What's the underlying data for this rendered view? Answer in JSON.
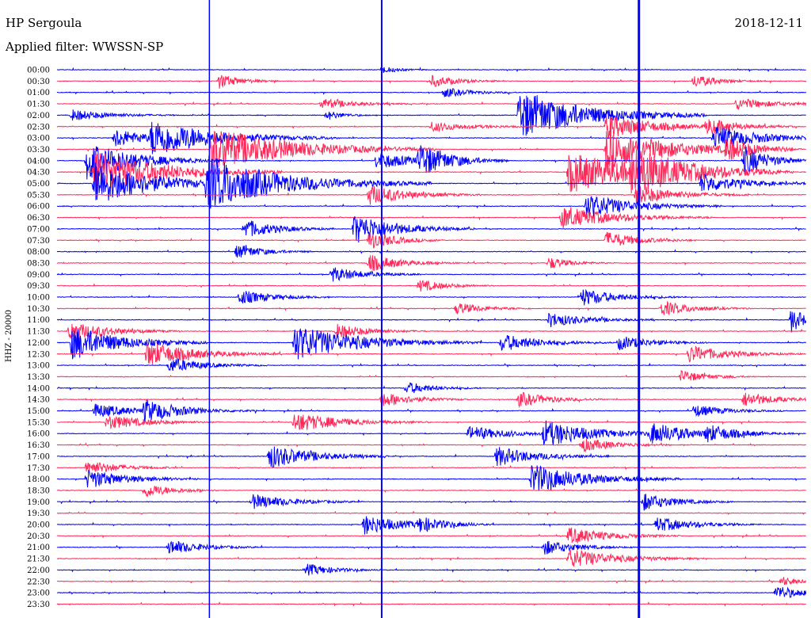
{
  "header": {
    "station": "HP Sergoula",
    "date": "2018-12-11",
    "filter": "Applied filter: WWSSN-SP"
  },
  "chart_data": {
    "type": "line",
    "title": "HP Sergoula",
    "subtitle": "Applied filter: WWSSN-SP",
    "channel_label": "HHZ - 20000",
    "date": "2018-12-11",
    "ylabel": "HHZ - 20000",
    "xlabel": "",
    "rows": [
      "00:00",
      "00:30",
      "01:00",
      "01:30",
      "02:00",
      "02:30",
      "03:00",
      "03:30",
      "04:00",
      "04:30",
      "05:00",
      "05:30",
      "06:00",
      "06:30",
      "07:00",
      "07:30",
      "08:00",
      "08:30",
      "09:00",
      "09:30",
      "10:00",
      "10:30",
      "11:00",
      "11:30",
      "12:00",
      "12:30",
      "13:00",
      "13:30",
      "14:00",
      "14:30",
      "15:00",
      "15:30",
      "16:00",
      "16:30",
      "17:00",
      "17:30",
      "18:00",
      "18:30",
      "19:00",
      "19:30",
      "20:00",
      "20:30",
      "21:00",
      "21:30",
      "22:00",
      "22:30",
      "23:00",
      "23:30"
    ],
    "colors": {
      "even": "#0000ff",
      "odd": "#ff2a5a"
    },
    "minutes_per_row": 30,
    "noise_level": 0.12,
    "events": [
      {
        "row": 0,
        "min": 13.0,
        "amp": 1.5,
        "dur": 0.6
      },
      {
        "row": 1,
        "min": 6.5,
        "amp": 3.0,
        "dur": 0.8
      },
      {
        "row": 1,
        "min": 15.0,
        "amp": 2.4,
        "dur": 1.0
      },
      {
        "row": 1,
        "min": 25.5,
        "amp": 2.6,
        "dur": 0.9
      },
      {
        "row": 2,
        "min": 15.5,
        "amp": 2.0,
        "dur": 1.0
      },
      {
        "row": 3,
        "min": 10.6,
        "amp": 2.2,
        "dur": 1.2
      },
      {
        "row": 3,
        "min": 27.2,
        "amp": 2.4,
        "dur": 1.4
      },
      {
        "row": 4,
        "min": 0.6,
        "amp": 2.3,
        "dur": 1.4
      },
      {
        "row": 4,
        "min": 10.8,
        "amp": 2.0,
        "dur": 0.6
      },
      {
        "row": 4,
        "min": 18.5,
        "amp": 10.0,
        "dur": 2.5
      },
      {
        "row": 5,
        "min": 15.0,
        "amp": 2.0,
        "dur": 1.5
      },
      {
        "row": 5,
        "min": 22.0,
        "amp": 5.0,
        "dur": 1.8
      },
      {
        "row": 5,
        "min": 26.0,
        "amp": 3.0,
        "dur": 1.2
      },
      {
        "row": 6,
        "min": 2.3,
        "amp": 4.0,
        "dur": 1.2
      },
      {
        "row": 6,
        "min": 3.8,
        "amp": 7.0,
        "dur": 2.5
      },
      {
        "row": 6,
        "min": 26.3,
        "amp": 5.0,
        "dur": 1.8
      },
      {
        "row": 7,
        "min": 6.2,
        "amp": 9.0,
        "dur": 3.0
      },
      {
        "row": 7,
        "min": 22.0,
        "amp": 8.0,
        "dur": 2.5
      },
      {
        "row": 7,
        "min": 26.8,
        "amp": 4.0,
        "dur": 1.0
      },
      {
        "row": 8,
        "min": 1.2,
        "amp": 8.0,
        "dur": 1.8
      },
      {
        "row": 8,
        "min": 12.8,
        "amp": 3.5,
        "dur": 1.5
      },
      {
        "row": 8,
        "min": 14.5,
        "amp": 6.0,
        "dur": 1.2
      },
      {
        "row": 8,
        "min": 27.5,
        "amp": 6.0,
        "dur": 1.0
      },
      {
        "row": 9,
        "min": 1.5,
        "amp": 9.0,
        "dur": 2.5
      },
      {
        "row": 9,
        "min": 20.5,
        "amp": 8.0,
        "dur": 3.0
      },
      {
        "row": 9,
        "min": 23.0,
        "amp": 7.0,
        "dur": 2.0
      },
      {
        "row": 10,
        "min": 1.5,
        "amp": 9.0,
        "dur": 2.2
      },
      {
        "row": 10,
        "min": 6.0,
        "amp": 10.0,
        "dur": 3.0
      },
      {
        "row": 10,
        "min": 25.8,
        "amp": 4.0,
        "dur": 1.5
      },
      {
        "row": 11,
        "min": 12.5,
        "amp": 4.0,
        "dur": 1.5
      },
      {
        "row": 11,
        "min": 23.2,
        "amp": 4.0,
        "dur": 1.5
      },
      {
        "row": 12,
        "min": 21.2,
        "amp": 5.0,
        "dur": 1.8
      },
      {
        "row": 13,
        "min": 20.2,
        "amp": 4.5,
        "dur": 2.0
      },
      {
        "row": 14,
        "min": 7.5,
        "amp": 4.0,
        "dur": 1.2
      },
      {
        "row": 14,
        "min": 11.9,
        "amp": 6.0,
        "dur": 1.6
      },
      {
        "row": 15,
        "min": 12.5,
        "amp": 4.0,
        "dur": 1.0
      },
      {
        "row": 15,
        "min": 22.0,
        "amp": 3.5,
        "dur": 1.2
      },
      {
        "row": 16,
        "min": 7.2,
        "amp": 3.0,
        "dur": 1.0
      },
      {
        "row": 17,
        "min": 12.5,
        "amp": 3.5,
        "dur": 1.2
      },
      {
        "row": 17,
        "min": 19.7,
        "amp": 2.5,
        "dur": 0.8
      },
      {
        "row": 18,
        "min": 11.0,
        "amp": 3.0,
        "dur": 1.2
      },
      {
        "row": 19,
        "min": 14.5,
        "amp": 2.5,
        "dur": 1.0
      },
      {
        "row": 20,
        "min": 7.3,
        "amp": 3.0,
        "dur": 1.2
      },
      {
        "row": 20,
        "min": 21.0,
        "amp": 3.5,
        "dur": 1.4
      },
      {
        "row": 21,
        "min": 16.0,
        "amp": 2.5,
        "dur": 1.0
      },
      {
        "row": 21,
        "min": 24.2,
        "amp": 3.0,
        "dur": 1.2
      },
      {
        "row": 22,
        "min": 19.7,
        "amp": 3.0,
        "dur": 1.4
      },
      {
        "row": 22,
        "min": 29.4,
        "amp": 5.0,
        "dur": 0.6
      },
      {
        "row": 23,
        "min": 0.5,
        "amp": 4.0,
        "dur": 1.5
      },
      {
        "row": 23,
        "min": 11.2,
        "amp": 3.0,
        "dur": 1.2
      },
      {
        "row": 24,
        "min": 0.6,
        "amp": 7.0,
        "dur": 1.8
      },
      {
        "row": 24,
        "min": 9.5,
        "amp": 7.0,
        "dur": 2.5
      },
      {
        "row": 24,
        "min": 17.8,
        "amp": 3.5,
        "dur": 1.5
      },
      {
        "row": 24,
        "min": 22.5,
        "amp": 3.0,
        "dur": 1.2
      },
      {
        "row": 25,
        "min": 3.6,
        "amp": 5.0,
        "dur": 1.8
      },
      {
        "row": 25,
        "min": 25.3,
        "amp": 3.5,
        "dur": 1.5
      },
      {
        "row": 26,
        "min": 4.5,
        "amp": 3.0,
        "dur": 1.3
      },
      {
        "row": 27,
        "min": 25.0,
        "amp": 2.5,
        "dur": 1.0
      },
      {
        "row": 28,
        "min": 14.0,
        "amp": 2.5,
        "dur": 1.0
      },
      {
        "row": 29,
        "min": 13.0,
        "amp": 3.0,
        "dur": 1.2
      },
      {
        "row": 29,
        "min": 18.5,
        "amp": 3.0,
        "dur": 1.2
      },
      {
        "row": 29,
        "min": 27.5,
        "amp": 3.0,
        "dur": 1.2
      },
      {
        "row": 30,
        "min": 1.5,
        "amp": 3.0,
        "dur": 1.4
      },
      {
        "row": 30,
        "min": 3.5,
        "amp": 4.0,
        "dur": 1.5
      },
      {
        "row": 30,
        "min": 25.5,
        "amp": 2.5,
        "dur": 1.2
      },
      {
        "row": 31,
        "min": 2.0,
        "amp": 3.0,
        "dur": 1.5
      },
      {
        "row": 31,
        "min": 9.5,
        "amp": 4.0,
        "dur": 1.8
      },
      {
        "row": 32,
        "min": 16.5,
        "amp": 3.0,
        "dur": 1.5
      },
      {
        "row": 32,
        "min": 19.5,
        "amp": 5.0,
        "dur": 2.0
      },
      {
        "row": 32,
        "min": 23.8,
        "amp": 4.0,
        "dur": 1.5
      },
      {
        "row": 32,
        "min": 26.0,
        "amp": 3.0,
        "dur": 1.2
      },
      {
        "row": 33,
        "min": 21.0,
        "amp": 3.0,
        "dur": 1.2
      },
      {
        "row": 34,
        "min": 8.5,
        "amp": 5.0,
        "dur": 1.6
      },
      {
        "row": 34,
        "min": 17.6,
        "amp": 4.0,
        "dur": 1.5
      },
      {
        "row": 35,
        "min": 1.2,
        "amp": 3.0,
        "dur": 1.2
      },
      {
        "row": 36,
        "min": 1.2,
        "amp": 4.0,
        "dur": 1.5
      },
      {
        "row": 36,
        "min": 19.0,
        "amp": 6.0,
        "dur": 2.0
      },
      {
        "row": 37,
        "min": 3.5,
        "amp": 3.0,
        "dur": 1.0
      },
      {
        "row": 38,
        "min": 7.8,
        "amp": 3.0,
        "dur": 1.5
      },
      {
        "row": 38,
        "min": 23.5,
        "amp": 3.5,
        "dur": 1.2
      },
      {
        "row": 40,
        "min": 12.3,
        "amp": 4.0,
        "dur": 1.5
      },
      {
        "row": 40,
        "min": 14.5,
        "amp": 2.5,
        "dur": 1.0
      },
      {
        "row": 40,
        "min": 24.0,
        "amp": 3.0,
        "dur": 1.4
      },
      {
        "row": 41,
        "min": 20.5,
        "amp": 3.5,
        "dur": 1.5
      },
      {
        "row": 42,
        "min": 4.5,
        "amp": 3.0,
        "dur": 1.2
      },
      {
        "row": 42,
        "min": 19.5,
        "amp": 3.0,
        "dur": 1.2
      },
      {
        "row": 43,
        "min": 20.5,
        "amp": 4.0,
        "dur": 1.8
      },
      {
        "row": 44,
        "min": 10.0,
        "amp": 2.5,
        "dur": 1.0
      },
      {
        "row": 45,
        "min": 29.0,
        "amp": 2.0,
        "dur": 0.6
      },
      {
        "row": 46,
        "min": 28.8,
        "amp": 3.0,
        "dur": 1.0
      }
    ],
    "vertical_lines": [
      {
        "min": 13.0,
        "color": "#0000ff",
        "width": 2
      },
      {
        "min": 6.1,
        "color": "#0000ff",
        "width": 1.5
      },
      {
        "min": 23.3,
        "color": "#0000ff",
        "width": 3
      }
    ]
  }
}
